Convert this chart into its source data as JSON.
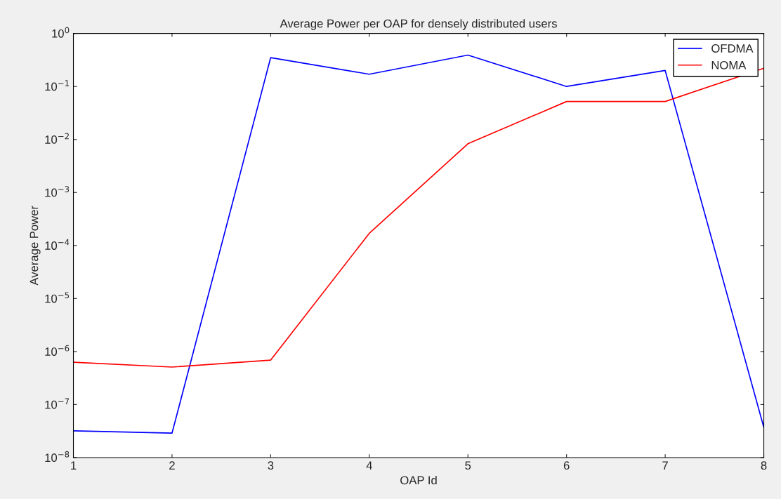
{
  "chart_data": {
    "type": "line",
    "title": "Average Power per OAP for densely distributed users",
    "xlabel": "OAP Id",
    "ylabel": "Average Power",
    "x": [
      1,
      2,
      3,
      4,
      5,
      6,
      7,
      8
    ],
    "series": [
      {
        "name": "OFDMA",
        "color": "#0000ff",
        "values": [
          3.2e-08,
          2.9e-08,
          0.35,
          0.17,
          0.39,
          0.1,
          0.2,
          3.7e-08
        ]
      },
      {
        "name": "NOMA",
        "color": "#ff0000",
        "values": [
          6.3e-07,
          5.1e-07,
          6.9e-07,
          0.00017,
          0.0083,
          0.052,
          0.052,
          0.22
        ]
      }
    ],
    "log": "y",
    "xlim": [
      1,
      8
    ],
    "ylim": [
      1e-08,
      1
    ],
    "xticks": [
      1,
      2,
      3,
      4,
      5,
      6,
      7,
      8
    ],
    "yticks": [
      {
        "value": 1e-08,
        "label": "10$^{−8}$"
      },
      {
        "value": 1e-07,
        "label": "10$^{−7}$"
      },
      {
        "value": 1e-06,
        "label": "10$^{−6}$"
      },
      {
        "value": 1e-05,
        "label": "10$^{−5}$"
      },
      {
        "value": 0.0001,
        "label": "10$^{−4}$"
      },
      {
        "value": 0.001,
        "label": "10$^{−3}$"
      },
      {
        "value": 0.01,
        "label": "10$^{−2}$"
      },
      {
        "value": 0.1,
        "label": "10$^{−1}$"
      },
      {
        "value": 1,
        "label": "10$^{0}$"
      }
    ],
    "grid": false,
    "legend": "top right",
    "marker": "none",
    "line_style": "solid"
  }
}
